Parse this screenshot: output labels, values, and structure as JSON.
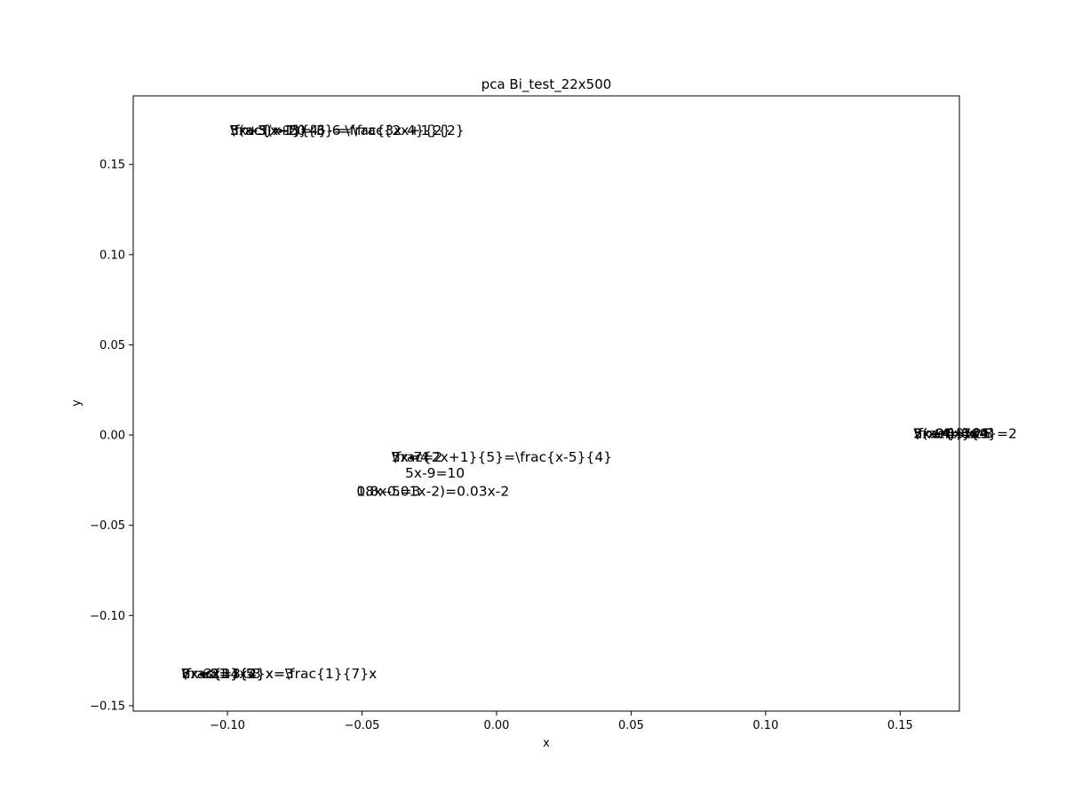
{
  "chart_data": {
    "type": "scatter",
    "title": "pca Bi_test_22x500",
    "xlabel": "x",
    "ylabel": "y",
    "xlim": [
      -0.135,
      0.172
    ],
    "ylim": [
      -0.153,
      0.188
    ],
    "xticks": [
      -0.1,
      -0.05,
      0.0,
      0.05,
      0.1,
      0.15
    ],
    "xtick_labels": [
      "−0.10",
      "−0.05",
      "0.00",
      "0.05",
      "0.10",
      "0.15"
    ],
    "yticks": [
      -0.15,
      -0.1,
      -0.05,
      0.0,
      0.05,
      0.1,
      0.15
    ],
    "ytick_labels": [
      "−0.15",
      "−0.10",
      "−0.05",
      "0.00",
      "0.05",
      "0.10",
      "0.15"
    ],
    "grid": false,
    "points": [
      {
        "x": -0.099,
        "y": 0.169,
        "label": "3x+5(x-1)=-6"
      },
      {
        "x": -0.099,
        "y": 0.169,
        "label": "5(x-3)=-20"
      },
      {
        "x": -0.099,
        "y": 0.169,
        "label": "\\frac{x-1}{4}-6=\\frac{2x+1}{2}"
      },
      {
        "x": -0.099,
        "y": 0.169,
        "label": "\\frac{x+5}{3}=\\frac{3x-4}{2}"
      },
      {
        "x": -0.117,
        "y": -0.132,
        "label": "3x+8=4x-3"
      },
      {
        "x": -0.117,
        "y": -0.132,
        "label": "7x=21"
      },
      {
        "x": -0.117,
        "y": -0.132,
        "label": "6x-3x=3-5"
      },
      {
        "x": -0.117,
        "y": -0.132,
        "label": "\\frac{3}{4}x=3"
      },
      {
        "x": -0.117,
        "y": -0.132,
        "label": "\\frac{1}{2}x=\\frac{1}{7}x"
      },
      {
        "x": -0.039,
        "y": -0.012,
        "label": "5x-7=2"
      },
      {
        "x": -0.039,
        "y": -0.012,
        "label": "7x=4"
      },
      {
        "x": -0.039,
        "y": -0.012,
        "label": "\\frac{2x+1}{5}=\\frac{x-5}{4}"
      },
      {
        "x": -0.034,
        "y": -0.021,
        "label": "5x-9=10"
      },
      {
        "x": -0.052,
        "y": -0.031,
        "label": "0.8x-5=3"
      },
      {
        "x": -0.052,
        "y": -0.031,
        "label": "18x-0.01x-2)=0.03x-2"
      },
      {
        "x": 0.155,
        "y": 0.001,
        "label": "5(x+1)=25"
      },
      {
        "x": 0.155,
        "y": 0.001,
        "label": "2x+4=10"
      },
      {
        "x": 0.155,
        "y": 0.001,
        "label": "\\frac{x}{4}=2"
      },
      {
        "x": 0.155,
        "y": 0.001,
        "label": "3x+4=7x-8"
      },
      {
        "x": 0.155,
        "y": 0.001,
        "label": "2(x-4)=x-9"
      },
      {
        "x": 0.155,
        "y": 0.001,
        "label": "7x-2=9"
      },
      {
        "x": 0.155,
        "y": 0.001,
        "label": "5x-9=-6x"
      }
    ]
  }
}
